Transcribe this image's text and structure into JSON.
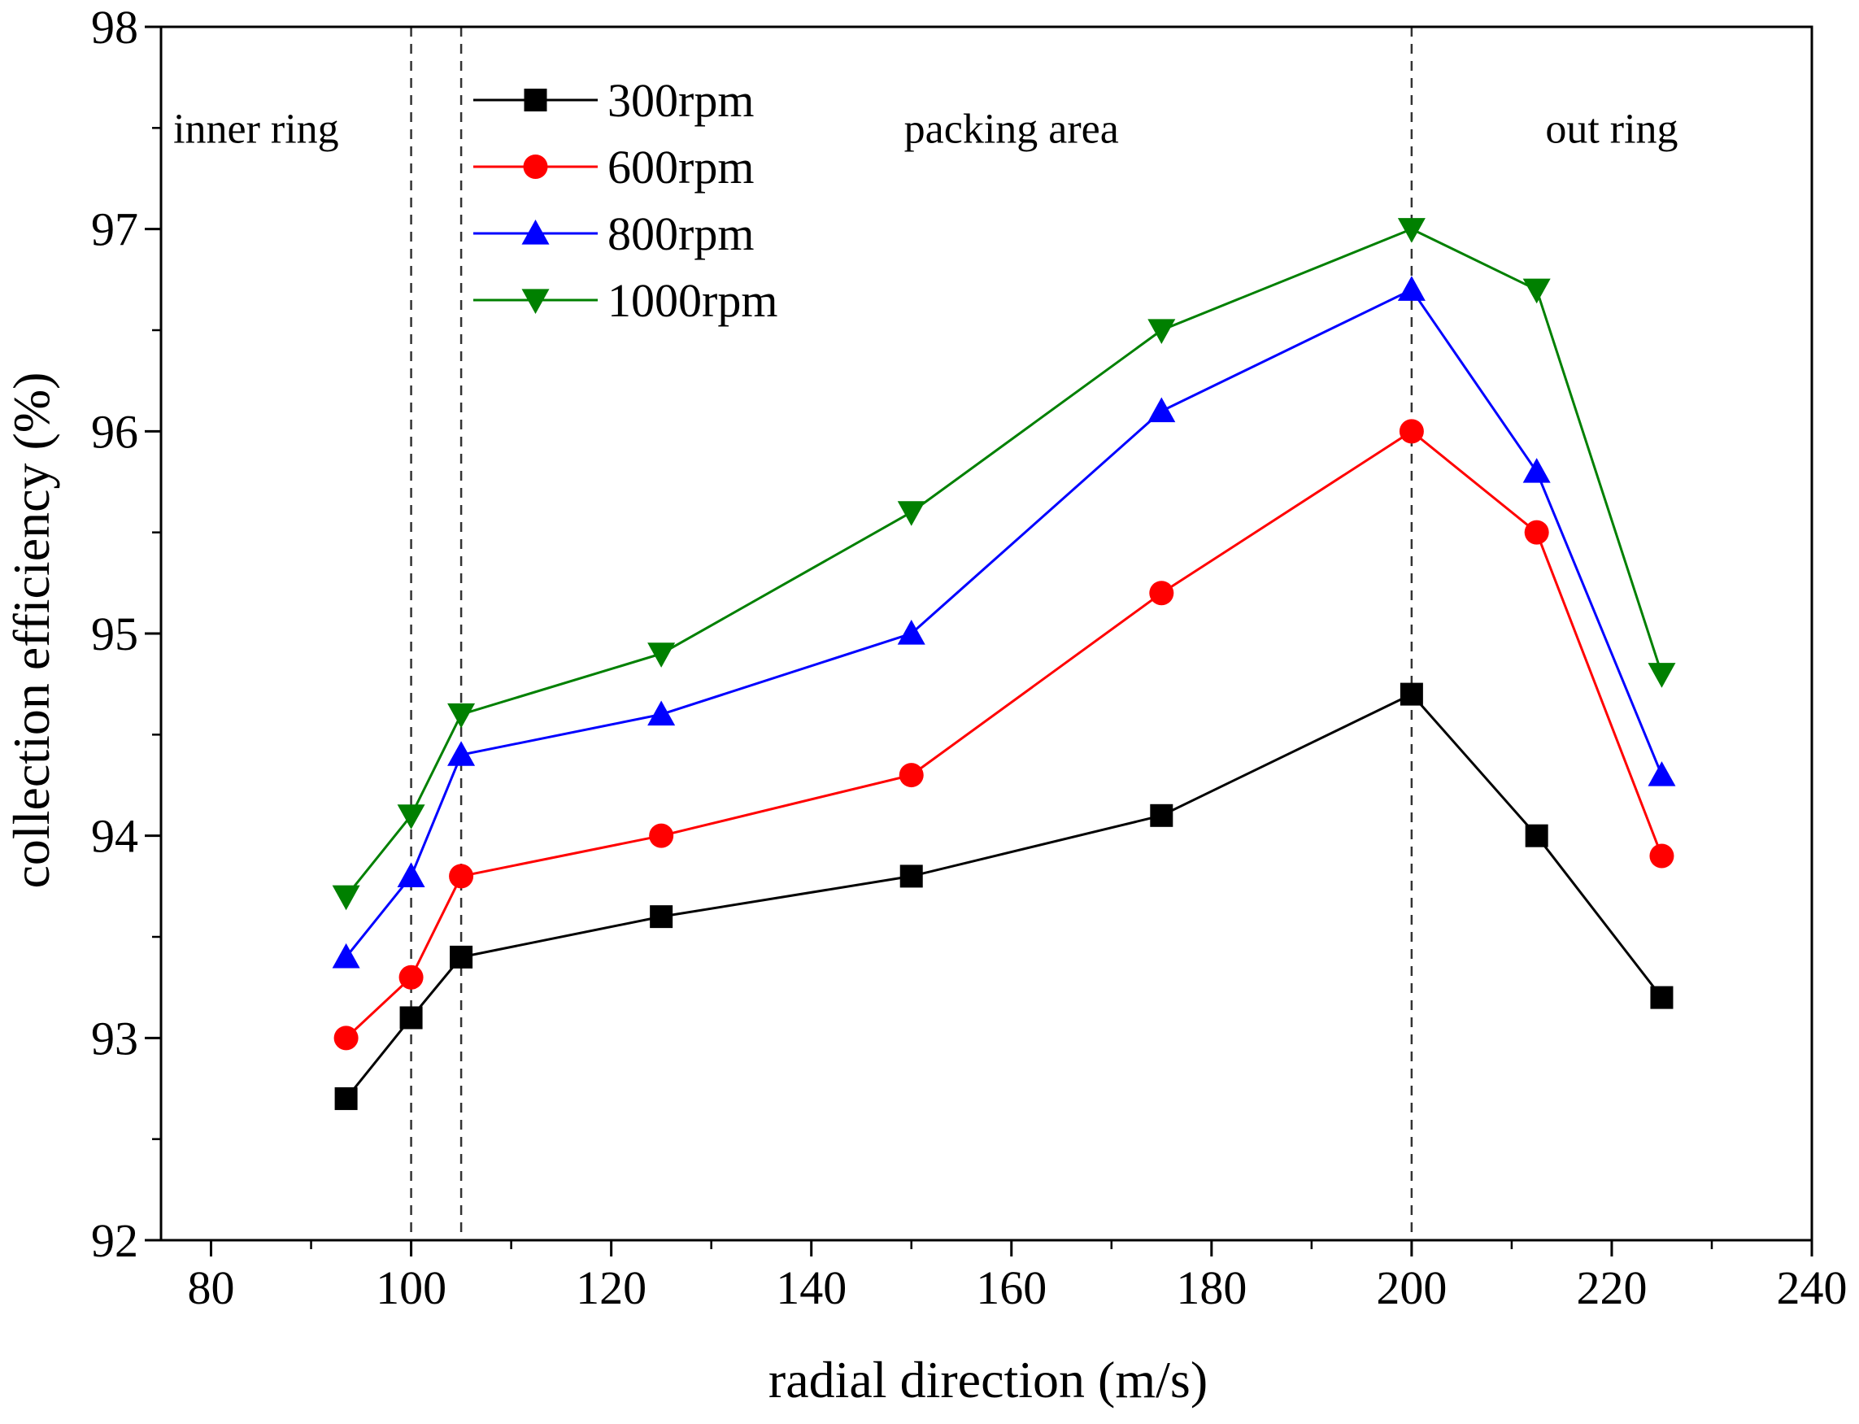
{
  "chart_data": {
    "type": "line",
    "title": "",
    "xlabel": "radial direction (m/s)",
    "ylabel": "collection efficiency (%)",
    "xlim": [
      75,
      240
    ],
    "ylim": [
      92,
      98
    ],
    "xticks": [
      80,
      100,
      120,
      140,
      160,
      180,
      200,
      220,
      240
    ],
    "yticks": [
      92,
      93,
      94,
      95,
      96,
      97,
      98
    ],
    "x_minor_step": 10,
    "y_minor_step": 0.5,
    "grid": false,
    "legend_position": "top-left",
    "x": [
      93.5,
      100,
      105,
      125,
      150,
      175,
      200,
      212.5,
      225
    ],
    "series": [
      {
        "name": "300rpm",
        "color": "#000000",
        "marker": "square",
        "values": [
          92.7,
          93.1,
          93.4,
          93.6,
          93.8,
          94.1,
          94.7,
          94.0,
          93.2
        ]
      },
      {
        "name": "600rpm",
        "color": "#ff0000",
        "marker": "circle",
        "values": [
          93.0,
          93.3,
          93.8,
          94.0,
          94.3,
          95.2,
          96.0,
          95.5,
          93.9
        ]
      },
      {
        "name": "800rpm",
        "color": "#0000ff",
        "marker": "triangle-up",
        "values": [
          93.4,
          93.8,
          94.4,
          94.6,
          95.0,
          96.1,
          96.7,
          95.8,
          94.3
        ]
      },
      {
        "name": "1000rpm",
        "color": "#008000",
        "marker": "triangle-down",
        "values": [
          93.7,
          94.1,
          94.6,
          94.9,
          95.6,
          96.5,
          97.0,
          96.7,
          94.8
        ]
      }
    ],
    "reference_lines": [
      {
        "x": 100,
        "style": "dashed"
      },
      {
        "x": 105,
        "style": "dashed"
      },
      {
        "x": 200,
        "style": "dashed"
      }
    ],
    "annotations": [
      {
        "id": "inner-ring",
        "text": "inner ring",
        "x": 84.5,
        "y": 97.5
      },
      {
        "id": "packing-area",
        "text": "packing area",
        "x": 160,
        "y": 97.5
      },
      {
        "id": "out-ring",
        "text": "out ring",
        "x": 220,
        "y": 97.5
      }
    ]
  }
}
